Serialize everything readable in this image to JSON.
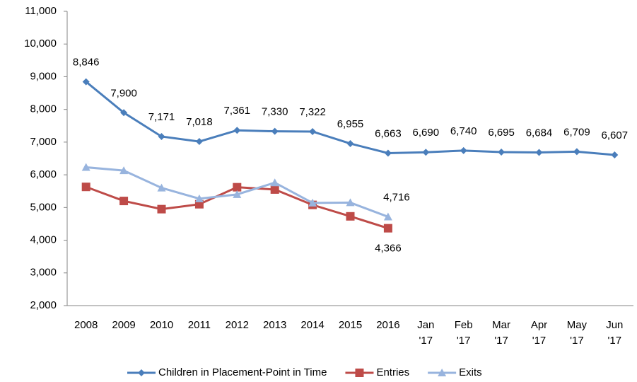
{
  "chart_data": {
    "type": "line",
    "categories": [
      "2008",
      "2009",
      "2010",
      "2011",
      "2012",
      "2013",
      "2014",
      "2015",
      "2016",
      "Jan '17",
      "Feb '17",
      "Mar '17",
      "Apr '17",
      "May '17",
      "Jun '17"
    ],
    "series": [
      {
        "name": "Children in Placement-Point in Time",
        "color": "#4a7ebb",
        "marker": "diamond",
        "values": [
          8846,
          7900,
          7171,
          7018,
          7361,
          7330,
          7322,
          6955,
          6663,
          6690,
          6740,
          6695,
          6684,
          6709,
          6607
        ],
        "value_labels": [
          "8,846",
          "7,900",
          "7,171",
          "7,018",
          "7,361",
          "7,330",
          "7,322",
          "6,955",
          "6,663",
          "6,690",
          "6,740",
          "6,695",
          "6,684",
          "6,709",
          "6,607"
        ]
      },
      {
        "name": "Entries",
        "color": "#be4b48",
        "marker": "square",
        "values": [
          5630,
          5200,
          4950,
          5100,
          5620,
          5550,
          5080,
          4730,
          4366,
          null,
          null,
          null,
          null,
          null,
          null
        ],
        "value_labels": [
          null,
          null,
          null,
          null,
          null,
          null,
          null,
          null,
          "4,366",
          null,
          null,
          null,
          null,
          null,
          null
        ]
      },
      {
        "name": "Exits",
        "color": "#98b4de",
        "marker": "triangle",
        "values": [
          6230,
          6130,
          5600,
          5270,
          5400,
          5760,
          5140,
          5150,
          4716,
          null,
          null,
          null,
          null,
          null,
          null
        ],
        "value_labels": [
          null,
          null,
          null,
          null,
          null,
          null,
          null,
          null,
          "4,716",
          null,
          null,
          null,
          null,
          null,
          null
        ]
      }
    ],
    "ylim": [
      2000,
      11000
    ],
    "yticks": [
      {
        "value": 2000,
        "label": "2,000"
      },
      {
        "value": 3000,
        "label": "3,000"
      },
      {
        "value": 4000,
        "label": "4,000"
      },
      {
        "value": 5000,
        "label": "5,000"
      },
      {
        "value": 6000,
        "label": "6,000"
      },
      {
        "value": 7000,
        "label": "7,000"
      },
      {
        "value": 8000,
        "label": "8,000"
      },
      {
        "value": 9000,
        "label": "9,000"
      },
      {
        "value": 10000,
        "label": "10,000"
      },
      {
        "value": 11000,
        "label": "11,000"
      }
    ],
    "grid": false,
    "legend": "bottom"
  }
}
